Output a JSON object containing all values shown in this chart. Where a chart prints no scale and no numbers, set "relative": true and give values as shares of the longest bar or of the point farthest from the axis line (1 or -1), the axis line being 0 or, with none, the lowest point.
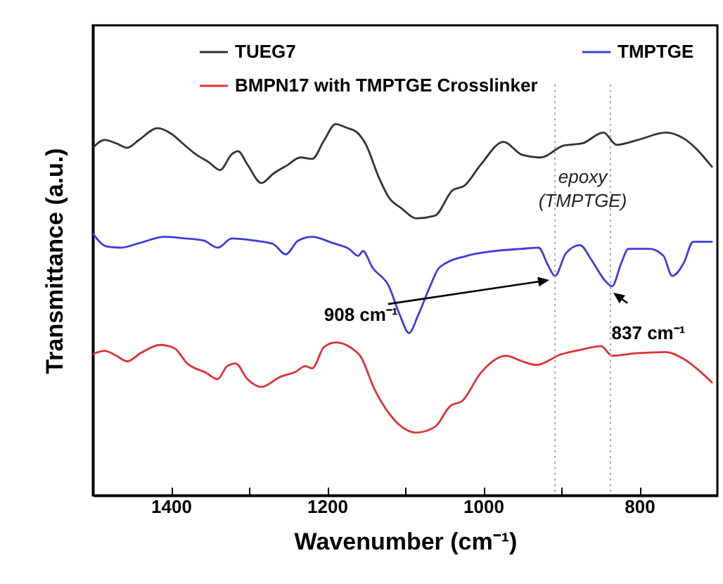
{
  "chart_data": {
    "type": "line",
    "relative": true,
    "xlabel": "Wavenumber (cm⁻¹)",
    "ylabel": "Transmittance (a.u.)",
    "xlim": [
      1500,
      700
    ],
    "xticks": [
      1400,
      {
        "value": 1300,
        "label": null
      },
      1200,
      {
        "value": 1100,
        "label": null
      },
      1000,
      {
        "value": 900,
        "label": null
      },
      800
    ],
    "legend": "top",
    "grid": false,
    "line_style": "solid",
    "series": [
      {
        "name": "TUEG7",
        "color": "#333333",
        "x": [
          1500,
          1485,
          1470,
          1456,
          1441,
          1417,
          1399,
          1385,
          1367,
          1352,
          1337,
          1322,
          1314,
          1302,
          1284,
          1269,
          1251,
          1234,
          1219,
          1204,
          1189,
          1175,
          1163,
          1151,
          1133,
          1121,
          1104,
          1086,
          1062,
          1039,
          1024,
          1003,
          974,
          950,
          926,
          897,
          873,
          846,
          829,
          802,
          766,
          743,
          707
        ],
        "values": [
          0.936,
          0.957,
          0.948,
          0.936,
          0.957,
          0.989,
          0.973,
          0.948,
          0.917,
          0.898,
          0.876,
          0.919,
          0.927,
          0.891,
          0.841,
          0.866,
          0.889,
          0.91,
          0.906,
          0.955,
          1.0,
          0.99,
          0.98,
          0.948,
          0.853,
          0.803,
          0.772,
          0.746,
          0.753,
          0.822,
          0.834,
          0.891,
          0.952,
          0.917,
          0.91,
          0.942,
          0.948,
          0.977,
          0.944,
          0.957,
          0.977,
          0.961,
          0.885
        ]
      },
      {
        "name": "TMPTGE",
        "color": "#3c3cdc",
        "x": [
          1500,
          1482,
          1464,
          1441,
          1408,
          1382,
          1358,
          1340,
          1322,
          1293,
          1269,
          1253,
          1237,
          1219,
          1192,
          1172,
          1160,
          1154,
          1142,
          1121,
          1107,
          1095,
          1083,
          1068,
          1056,
          1021,
          985,
          950,
          929,
          917,
          908,
          894,
          876,
          861,
          843,
          835,
          823,
          814,
          787,
          769,
          758,
          743,
          731,
          707
        ],
        "values": [
          0.705,
          0.67,
          0.667,
          0.679,
          0.696,
          0.692,
          0.686,
          0.667,
          0.692,
          0.686,
          0.677,
          0.649,
          0.686,
          0.696,
          0.679,
          0.664,
          0.645,
          0.658,
          0.614,
          0.564,
          0.487,
          0.437,
          0.487,
          0.563,
          0.614,
          0.645,
          0.658,
          0.664,
          0.667,
          0.62,
          0.591,
          0.652,
          0.674,
          0.633,
          0.576,
          0.563,
          0.626,
          0.664,
          0.664,
          0.645,
          0.591,
          0.626,
          0.683,
          0.683
        ]
      },
      {
        "name": "BMPN17  with TMPTGE Crosslinker",
        "color": "#dd3333",
        "x": [
          1500,
          1485,
          1470,
          1456,
          1438,
          1414,
          1396,
          1379,
          1355,
          1340,
          1328,
          1317,
          1302,
          1284,
          1260,
          1240,
          1228,
          1219,
          1204,
          1189,
          1169,
          1157,
          1139,
          1121,
          1104,
          1086,
          1062,
          1042,
          1027,
          1003,
          971,
          950,
          932,
          900,
          873,
          849,
          835,
          802,
          766,
          743,
          707
        ],
        "values": [
          0.38,
          0.389,
          0.376,
          0.361,
          0.384,
          0.405,
          0.397,
          0.355,
          0.33,
          0.313,
          0.348,
          0.355,
          0.313,
          0.292,
          0.319,
          0.333,
          0.348,
          0.342,
          0.399,
          0.412,
          0.397,
          0.374,
          0.285,
          0.222,
          0.184,
          0.169,
          0.184,
          0.241,
          0.254,
          0.33,
          0.376,
          0.361,
          0.351,
          0.38,
          0.393,
          0.402,
          0.376,
          0.383,
          0.386,
          0.367,
          0.304
        ]
      }
    ],
    "ref_lines": [
      {
        "axis": "x",
        "value": 908,
        "color": "#aaaaaa",
        "line_style": "dotted"
      },
      {
        "axis": "x",
        "value": 837,
        "color": "#aaaaaa",
        "line_style": "dotted"
      }
    ],
    "annotations": [
      "epoxy\n(TMPTGE)",
      "908 cm⁻¹",
      "837 cm⁻¹"
    ]
  }
}
